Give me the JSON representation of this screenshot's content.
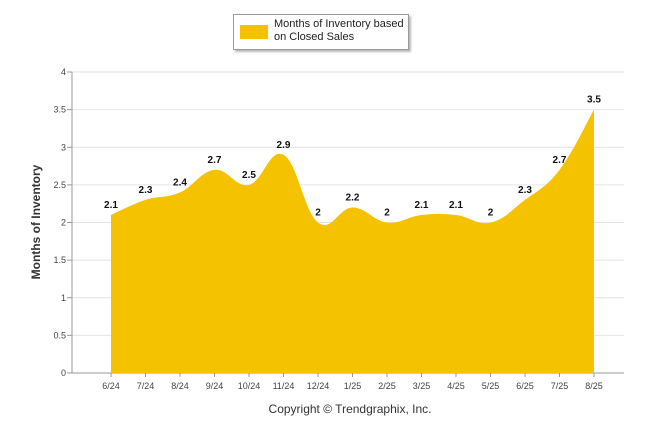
{
  "chart_data": {
    "type": "area",
    "categories": [
      "6/24",
      "7/24",
      "8/24",
      "9/24",
      "10/24",
      "11/24",
      "12/24",
      "1/25",
      "2/25",
      "3/25",
      "4/25",
      "5/25",
      "6/25",
      "7/25",
      "8/25"
    ],
    "series": [
      {
        "name": "Months of Inventory based on Closed Sales",
        "color": "#F5C200",
        "values": [
          2.1,
          2.3,
          2.4,
          2.7,
          2.5,
          2.9,
          2,
          2.2,
          2,
          2.1,
          2.1,
          2,
          2.3,
          2.7,
          3.5
        ]
      }
    ],
    "data_labels": [
      "2.1",
      "2.3",
      "2.4",
      "2.7",
      "2.5",
      "2.9",
      "2",
      "2.2",
      "2",
      "2.1",
      "2.1",
      "2",
      "2.3",
      "2.7",
      "3.5"
    ],
    "yticks": [
      "0",
      "0.5",
      "1",
      "1.5",
      "2",
      "2.5",
      "3",
      "3.5",
      "4"
    ],
    "ylim": [
      0,
      4
    ],
    "ylabel": "Months of Inventory",
    "xlabel": "",
    "grid": true,
    "legend_position": "top-center"
  },
  "legend": {
    "label": "Months of Inventory based on Closed Sales",
    "color": "#F5C200"
  },
  "footer": {
    "copyright": "Copyright © Trendgraphix, Inc."
  }
}
